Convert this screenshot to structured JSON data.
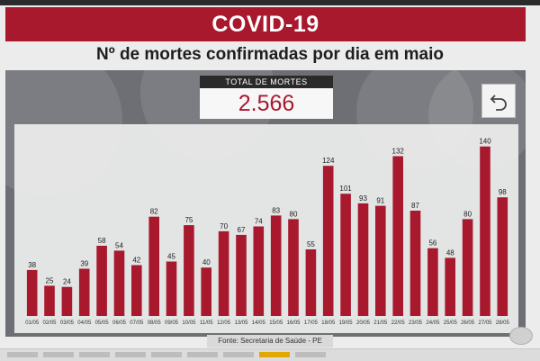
{
  "header": {
    "title": "COVID-19",
    "subtitle": "Nº de mortes confirmadas por dia em maio"
  },
  "total": {
    "label": "TOTAL DE MORTES",
    "value": "2.566"
  },
  "source": "Fonte: Secretaria de Saúde - PE",
  "colors": {
    "brand_red": "#a8192e",
    "bar": "#a8192e",
    "panel": "#6d6f74"
  },
  "icons": {
    "back": "undo-arrow-icon"
  },
  "chart_data": {
    "type": "bar",
    "title": "Nº de mortes confirmadas por dia em maio",
    "xlabel": "",
    "ylabel": "",
    "ylim": [
      0,
      150
    ],
    "grid": false,
    "categories": [
      "01/05",
      "02/05",
      "03/05",
      "04/05",
      "05/05",
      "06/05",
      "07/05",
      "08/05",
      "09/05",
      "10/05",
      "11/05",
      "12/05",
      "13/05",
      "14/05",
      "15/05",
      "16/05",
      "17/05",
      "18/05",
      "19/05",
      "20/05",
      "21/05",
      "22/05",
      "23/05",
      "24/05",
      "25/05",
      "26/05",
      "27/05",
      "28/05"
    ],
    "values": [
      38,
      25,
      24,
      39,
      58,
      54,
      42,
      82,
      45,
      75,
      40,
      70,
      67,
      74,
      83,
      80,
      55,
      124,
      101,
      93,
      91,
      132,
      87,
      56,
      48,
      80,
      140,
      98
    ]
  }
}
